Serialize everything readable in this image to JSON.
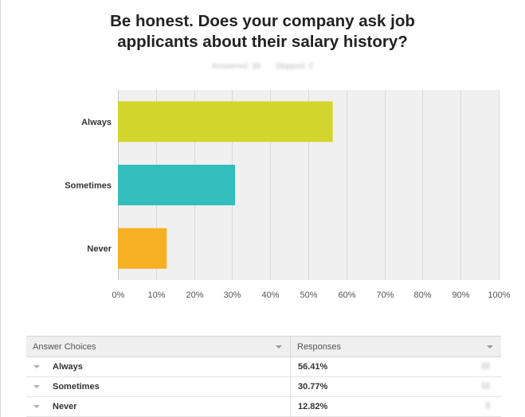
{
  "chart_data": {
    "type": "bar",
    "orientation": "horizontal",
    "title": "Be honest. Does your company ask job applicants about their salary history?",
    "subtitle": [
      "Answered: 39",
      "Skipped: 0"
    ],
    "categories": [
      "Always",
      "Sometimes",
      "Never"
    ],
    "values": [
      56.41,
      30.77,
      12.82
    ],
    "colors": [
      "#d2d52b",
      "#33bdbd",
      "#f7b022"
    ],
    "xlim": [
      0,
      100
    ],
    "xticks": [
      "0%",
      "10%",
      "20%",
      "30%",
      "40%",
      "50%",
      "60%",
      "70%",
      "80%",
      "90%",
      "100%"
    ],
    "grid": true,
    "legend": "none"
  },
  "table": {
    "headers": [
      "Answer Choices",
      "Responses"
    ],
    "rows": [
      {
        "choice": "Always",
        "response": "56.41%",
        "count": "22"
      },
      {
        "choice": "Sometimes",
        "response": "30.77%",
        "count": "12"
      },
      {
        "choice": "Never",
        "response": "12.82%",
        "count": "5"
      }
    ]
  }
}
